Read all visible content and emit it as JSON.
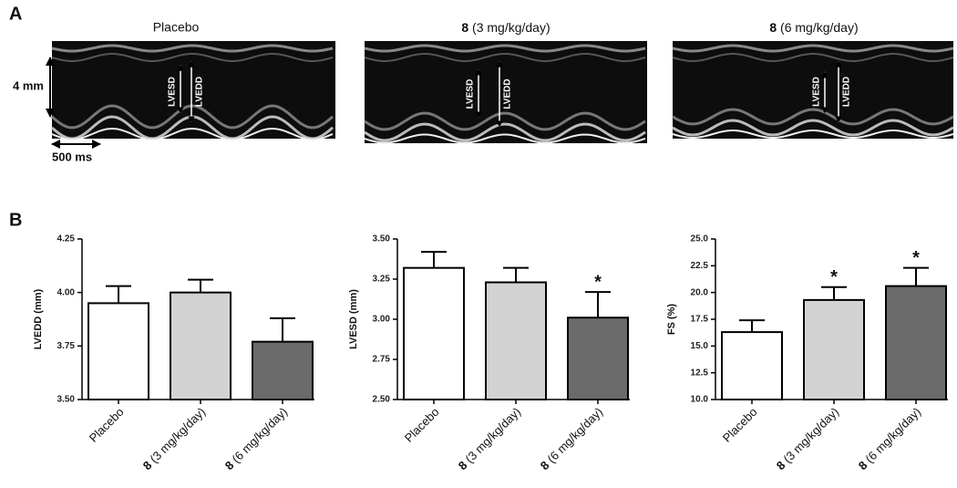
{
  "panel_a": {
    "label": "A",
    "titles": [
      "Placebo",
      "8 (3 mg/kg/day)",
      "8 (6 mg/kg/day)"
    ],
    "scale_y": "4 mm",
    "scale_x": "500 ms",
    "lvesd": "LVESD",
    "lvedd": "LVEDD"
  },
  "panel_b": {
    "label": "B"
  },
  "chart_data": [
    {
      "type": "bar",
      "y_label": "LVEDD (mm)",
      "categories": [
        "Placebo",
        "8 (3 mg/kg/day)",
        "8 (6 mg/kg/day)"
      ],
      "values": [
        3.95,
        4.0,
        3.77
      ],
      "errors": [
        0.08,
        0.06,
        0.11
      ],
      "annotations": [
        null,
        null,
        null
      ],
      "colors": [
        "#ffffff",
        "#d3d3d3",
        "#6b6b6b"
      ],
      "ylim": [
        3.5,
        4.25
      ],
      "yticks": [
        {
          "value": 3.5,
          "label": "3.50"
        },
        {
          "value": 3.75,
          "label": "3.75"
        },
        {
          "value": 4.0,
          "label": "4.00"
        },
        {
          "value": 4.25,
          "label": "4.25"
        }
      ]
    },
    {
      "type": "bar",
      "y_label": "LVESD (mm)",
      "categories": [
        "Placebo",
        "8 (3 mg/kg/day)",
        "8 (6 mg/kg/day)"
      ],
      "values": [
        3.32,
        3.23,
        3.01
      ],
      "errors": [
        0.1,
        0.09,
        0.16
      ],
      "annotations": [
        null,
        null,
        "*"
      ],
      "colors": [
        "#ffffff",
        "#d3d3d3",
        "#6b6b6b"
      ],
      "ylim": [
        2.5,
        3.5
      ],
      "yticks": [
        {
          "value": 2.5,
          "label": "2.50"
        },
        2.75,
        {
          "value": 3.0,
          "label": "3.00"
        },
        3.25,
        {
          "value": 3.5,
          "label": "3.50"
        }
      ]
    },
    {
      "type": "bar",
      "y_label": "FS (%)",
      "categories": [
        "Placebo",
        "8 (3 mg/kg/day)",
        "8 (6 mg/kg/day)"
      ],
      "values": [
        16.3,
        19.3,
        20.6
      ],
      "errors": [
        1.1,
        1.2,
        1.7
      ],
      "annotations": [
        null,
        "*",
        "*"
      ],
      "colors": [
        "#ffffff",
        "#d3d3d3",
        "#6b6b6b"
      ],
      "ylim": [
        10,
        25
      ],
      "yticks": [
        {
          "value": 10,
          "label": "10.0"
        },
        12.5,
        {
          "value": 15,
          "label": "15.0"
        },
        17.5,
        {
          "value": 20,
          "label": "20.0"
        },
        22.5,
        {
          "value": 25,
          "label": "25.0"
        }
      ]
    }
  ]
}
